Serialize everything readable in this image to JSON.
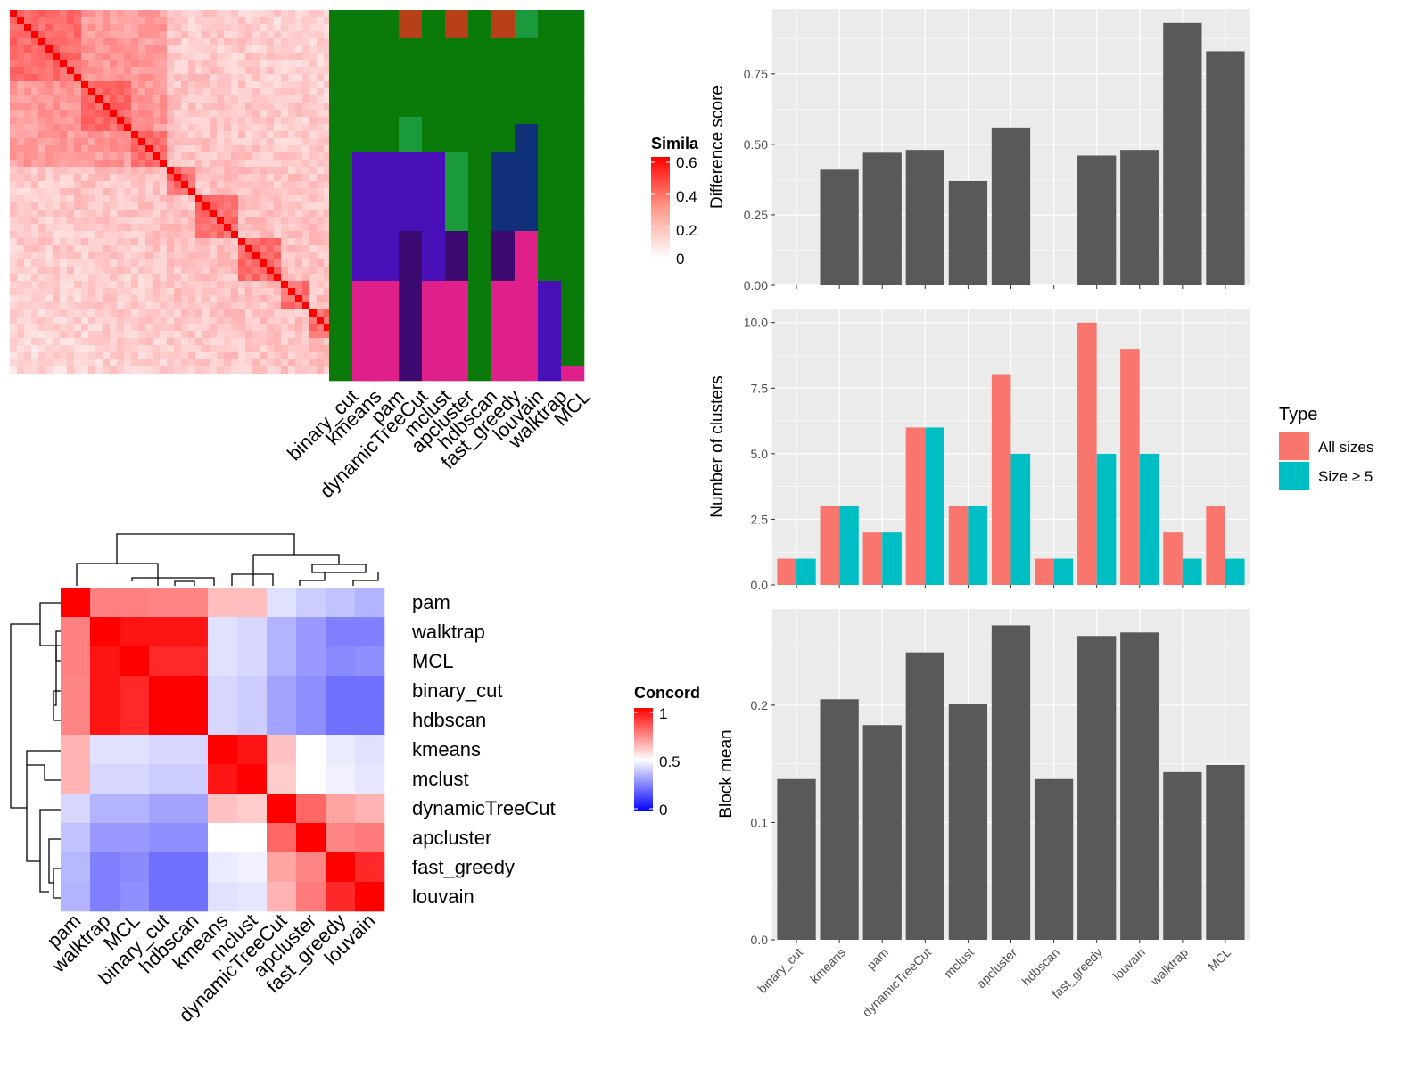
{
  "colors": {
    "panel_bg": "#ebebeb",
    "grid": "#ffffff",
    "bar_dark": "#595959",
    "all_sizes": "#f8766d",
    "size_ge5": "#00bfc4",
    "sim_high": "#ff0000",
    "sim_low": "#ffffff",
    "conc_high": "#ff0000",
    "conc_mid": "#ffffff",
    "conc_low": "#0000ff",
    "cluster_palette": [
      "#0a7a0a",
      "#4a10b8",
      "#e0208a",
      "#1a9a3a",
      "#b84018",
      "#c09018",
      "#10307a",
      "#208898",
      "#3c0a70"
    ]
  },
  "chart_data": [
    {
      "id": "similarity_heatmap",
      "type": "heatmap",
      "title": "",
      "legend": {
        "title": "Simila",
        "ticks": [
          "0.6",
          "0.4",
          "0.2",
          "0"
        ],
        "tick_values": [
          0.6,
          0.4,
          0.2,
          0
        ]
      },
      "n": 52,
      "value_range": [
        0,
        0.6
      ]
    },
    {
      "id": "cluster_assignment_annotation",
      "type": "heatmap",
      "columns": [
        "binary_cut",
        "kmeans",
        "pam",
        "dynamicTreeCut",
        "mclust",
        "apcluster",
        "hdbscan",
        "fast_greedy",
        "louvain",
        "walktrap",
        "MCL"
      ],
      "n_rows": 52
    },
    {
      "id": "concordance_heatmap",
      "type": "heatmap",
      "legend": {
        "title": "Concord",
        "ticks": [
          "1",
          "0.5",
          "0"
        ],
        "tick_values": [
          1,
          0.5,
          0
        ]
      },
      "rows": [
        "pam",
        "walktrap",
        "MCL",
        "binary_cut",
        "hdbscan",
        "kmeans",
        "mclust",
        "dynamicTreeCut",
        "apcluster",
        "fast_greedy",
        "louvain"
      ],
      "columns": [
        "pam",
        "walktrap",
        "MCL",
        "binary_cut",
        "hdbscan",
        "kmeans",
        "mclust",
        "dynamicTreeCut",
        "apcluster",
        "fast_greedy",
        "louvain"
      ],
      "values": [
        [
          1.0,
          0.75,
          0.75,
          0.74,
          0.74,
          0.63,
          0.63,
          0.44,
          0.4,
          0.38,
          0.35
        ],
        [
          0.75,
          1.0,
          0.96,
          0.96,
          0.96,
          0.44,
          0.42,
          0.35,
          0.3,
          0.25,
          0.25
        ],
        [
          0.75,
          0.96,
          1.0,
          0.92,
          0.92,
          0.44,
          0.42,
          0.35,
          0.3,
          0.27,
          0.28
        ],
        [
          0.74,
          0.96,
          0.92,
          1.0,
          1.0,
          0.42,
          0.4,
          0.32,
          0.28,
          0.22,
          0.22
        ],
        [
          0.74,
          0.96,
          0.92,
          1.0,
          1.0,
          0.42,
          0.4,
          0.32,
          0.28,
          0.22,
          0.22
        ],
        [
          0.65,
          0.44,
          0.44,
          0.42,
          0.42,
          1.0,
          0.96,
          0.62,
          0.5,
          0.46,
          0.44
        ],
        [
          0.65,
          0.42,
          0.42,
          0.4,
          0.4,
          0.96,
          1.0,
          0.6,
          0.5,
          0.47,
          0.45
        ],
        [
          0.42,
          0.35,
          0.35,
          0.32,
          0.32,
          0.62,
          0.6,
          1.0,
          0.8,
          0.68,
          0.65
        ],
        [
          0.38,
          0.3,
          0.3,
          0.28,
          0.28,
          0.5,
          0.5,
          0.8,
          1.0,
          0.74,
          0.76
        ],
        [
          0.36,
          0.25,
          0.27,
          0.22,
          0.22,
          0.46,
          0.47,
          0.68,
          0.74,
          1.0,
          0.92
        ],
        [
          0.35,
          0.25,
          0.28,
          0.22,
          0.22,
          0.44,
          0.45,
          0.65,
          0.76,
          0.92,
          1.0
        ]
      ]
    },
    {
      "id": "difference_score",
      "type": "bar",
      "categories": [
        "binary_cut",
        "kmeans",
        "pam",
        "dynamicTreeCut",
        "mclust",
        "apcluster",
        "hdbscan",
        "fast_greedy",
        "louvain",
        "walktrap",
        "MCL"
      ],
      "values": [
        null,
        0.41,
        0.47,
        0.48,
        0.37,
        0.56,
        null,
        0.46,
        0.48,
        0.93,
        0.83
      ],
      "xlabel": "",
      "ylabel": "Difference score",
      "ylim": [
        0,
        0.98
      ],
      "yticks": [
        0,
        0.25,
        0.5,
        0.75
      ],
      "ytick_labels": [
        "0.00",
        "0.25",
        "0.50",
        "0.75"
      ]
    },
    {
      "id": "number_of_clusters",
      "type": "bar",
      "categories": [
        "binary_cut",
        "kmeans",
        "pam",
        "dynamicTreeCut",
        "mclust",
        "apcluster",
        "hdbscan",
        "fast_greedy",
        "louvain",
        "walktrap",
        "MCL"
      ],
      "series": [
        {
          "name": "All sizes",
          "values": [
            1,
            3,
            2,
            6,
            3,
            8,
            1,
            10,
            9,
            2,
            3
          ]
        },
        {
          "name": "Size ≥ 5",
          "values": [
            1,
            3,
            2,
            6,
            3,
            5,
            1,
            5,
            5,
            1,
            1
          ]
        }
      ],
      "xlabel": "",
      "ylabel": "Number of clusters",
      "ylim": [
        0,
        10.5
      ],
      "yticks": [
        0,
        2.5,
        5,
        7.5,
        10
      ],
      "ytick_labels": [
        "0.0",
        "2.5",
        "5.0",
        "7.5",
        "10.0"
      ],
      "legend": {
        "title": "Type",
        "position": "right"
      }
    },
    {
      "id": "block_mean",
      "type": "bar",
      "categories": [
        "binary_cut",
        "kmeans",
        "pam",
        "dynamicTreeCut",
        "mclust",
        "apcluster",
        "hdbscan",
        "fast_greedy",
        "louvain",
        "walktrap",
        "MCL"
      ],
      "values": [
        0.137,
        0.205,
        0.183,
        0.245,
        0.201,
        0.268,
        0.137,
        0.259,
        0.262,
        0.143,
        0.149
      ],
      "xlabel": "",
      "ylabel": "Block mean",
      "ylim": [
        0,
        0.282
      ],
      "yticks": [
        0,
        0.1,
        0.2
      ],
      "ytick_labels": [
        "0.0",
        "0.1",
        "0.2"
      ]
    }
  ]
}
